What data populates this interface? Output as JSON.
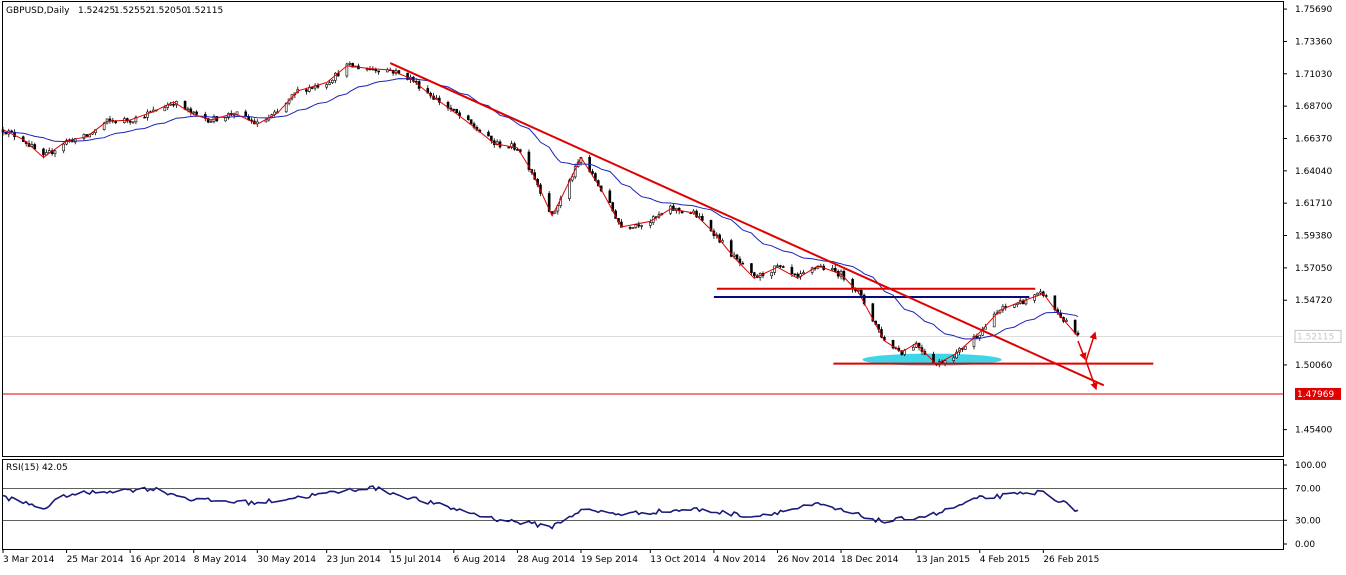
{
  "header": {
    "symbol": "GBPUSD,Daily",
    "ohlc": [
      "1.52425",
      "1.52552",
      "1.52050",
      "1.52115"
    ]
  },
  "price_pane": {
    "y_ticks": [
      "1.75690",
      "1.73360",
      "1.71030",
      "1.68700",
      "1.66370",
      "1.64040",
      "1.61710",
      "1.59380",
      "1.57050",
      "1.54720",
      "1.52115",
      "1.50060",
      "1.47969",
      "1.45400"
    ],
    "current_price_label": "1.52115",
    "support_line_label": "1.47969",
    "colors": {
      "candle": "#000000",
      "ma": "#1a23b8",
      "zigzag": "#e00000",
      "trendline": "#e00000",
      "support_line": "#e00000",
      "channel_top": "#e00000",
      "channel_bottom": "#0a0a80",
      "highlight": "#28d2e6"
    }
  },
  "rsi_pane": {
    "label": "RSI(15) 42.05",
    "y_ticks": [
      "100.00",
      "70.00",
      "30.00",
      "0.00"
    ],
    "levels": [
      70,
      30
    ],
    "color": "#1a1a7a"
  },
  "x_axis": {
    "labels": [
      "3 Mar 2014",
      "25 Mar 2014",
      "16 Apr 2014",
      "8 May 2014",
      "30 May 2014",
      "23 Jun 2014",
      "15 Jul 2014",
      "6 Aug 2014",
      "28 Aug 2014",
      "19 Sep 2014",
      "13 Oct 2014",
      "4 Nov 2014",
      "26 Nov 2014",
      "18 Dec 2014",
      "13 Jan 2015",
      "4 Feb 2015",
      "26 Feb 2015"
    ]
  },
  "chart_data": {
    "type": "candlestick",
    "title": "GBPUSD,Daily",
    "ylim": [
      1.435,
      1.762
    ],
    "x_start": "3 Mar 2014",
    "x_end": "10 Mar 2015",
    "price_points": [
      [
        "3 Mar 2014",
        1.67
      ],
      [
        "10 Mar 2014",
        1.663
      ],
      [
        "17 Mar 2014",
        1.65
      ],
      [
        "25 Mar 2014",
        1.662
      ],
      [
        "1 Apr 2014",
        1.665
      ],
      [
        "8 Apr 2014",
        1.676
      ],
      [
        "16 Apr 2014",
        1.677
      ],
      [
        "24 Apr 2014",
        1.683
      ],
      [
        "1 May 2014",
        1.69
      ],
      [
        "8 May 2014",
        1.681
      ],
      [
        "14 May 2014",
        1.677
      ],
      [
        "22 May 2014",
        1.682
      ],
      [
        "30 May 2014",
        1.674
      ],
      [
        "6 Jun 2014",
        1.682
      ],
      [
        "13 Jun 2014",
        1.698
      ],
      [
        "23 Jun 2014",
        1.704
      ],
      [
        "30 Jun 2014",
        1.716
      ],
      [
        "8 Jul 2014",
        1.714
      ],
      [
        "15 Jul 2014",
        1.713
      ],
      [
        "22 Jul 2014",
        1.707
      ],
      [
        "29 Jul 2014",
        1.695
      ],
      [
        "6 Aug 2014",
        1.683
      ],
      [
        "13 Aug 2014",
        1.672
      ],
      [
        "20 Aug 2014",
        1.66
      ],
      [
        "28 Aug 2014",
        1.657
      ],
      [
        "2 Sep 2014",
        1.64
      ],
      [
        "9 Sep 2014",
        1.608
      ],
      [
        "12 Sep 2014",
        1.62
      ],
      [
        "19 Sep 2014",
        1.65
      ],
      [
        "26 Sep 2014",
        1.627
      ],
      [
        "3 Oct 2014",
        1.6
      ],
      [
        "13 Oct 2014",
        1.604
      ],
      [
        "20 Oct 2014",
        1.613
      ],
      [
        "28 Oct 2014",
        1.61
      ],
      [
        "4 Nov 2014",
        1.596
      ],
      [
        "11 Nov 2014",
        1.578
      ],
      [
        "18 Nov 2014",
        1.563
      ],
      [
        "26 Nov 2014",
        1.571
      ],
      [
        "3 Dec 2014",
        1.563
      ],
      [
        "10 Dec 2014",
        1.572
      ],
      [
        "18 Dec 2014",
        1.566
      ],
      [
        "24 Dec 2014",
        1.553
      ],
      [
        "2 Jan 2015",
        1.518
      ],
      [
        "8 Jan 2015",
        1.51
      ],
      [
        "13 Jan 2015",
        1.516
      ],
      [
        "20 Jan 2015",
        1.501
      ],
      [
        "27 Jan 2015",
        1.509
      ],
      [
        "4 Feb 2015",
        1.524
      ],
      [
        "11 Feb 2015",
        1.54
      ],
      [
        "18 Feb 2015",
        1.546
      ],
      [
        "26 Feb 2015",
        1.552
      ],
      [
        "3 Mar 2015",
        1.538
      ],
      [
        "10 Mar 2015",
        1.521
      ]
    ],
    "annotations": {
      "trendline": {
        "from": [
          "15 Jul 2014",
          1.718
        ],
        "to": [
          "12 Mar 2015",
          1.496
        ]
      },
      "support_line": 1.47969,
      "resistance_zone": {
        "from": "4 Nov 2014",
        "to": "26 Feb 2015",
        "top": 1.5555,
        "bottom": 1.5495
      },
      "support_zone": {
        "from": "24 Dec 2014",
        "to": "16 Mar 2015",
        "level": 1.5015
      }
    },
    "rsi_points": [
      [
        "3 Mar 2014",
        60
      ],
      [
        "17 Mar 2014",
        45
      ],
      [
        "25 Mar 2014",
        62
      ],
      [
        "8 Apr 2014",
        67
      ],
      [
        "24 Apr 2014",
        70
      ],
      [
        "8 May 2014",
        56
      ],
      [
        "30 May 2014",
        52
      ],
      [
        "23 Jun 2014",
        64
      ],
      [
        "8 Jul 2014",
        72
      ],
      [
        "29 Jul 2014",
        52
      ],
      [
        "20 Aug 2014",
        32
      ],
      [
        "9 Sep 2014",
        22
      ],
      [
        "19 Sep 2014",
        43
      ],
      [
        "3 Oct 2014",
        38
      ],
      [
        "28 Oct 2014",
        44
      ],
      [
        "18 Nov 2014",
        35
      ],
      [
        "10 Dec 2014",
        50
      ],
      [
        "2 Jan 2015",
        28
      ],
      [
        "20 Jan 2015",
        38
      ],
      [
        "4 Feb 2015",
        58
      ],
      [
        "26 Feb 2015",
        66
      ],
      [
        "10 Mar 2015",
        42
      ]
    ]
  }
}
